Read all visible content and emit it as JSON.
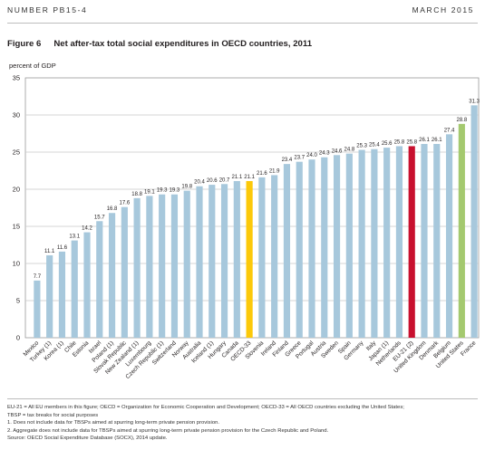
{
  "header": {
    "left": "NUMBER PB15-4",
    "right": "MARCH 2015"
  },
  "figure": {
    "label": "Figure 6",
    "title": "Net after-tax total social expenditures in OECD countries, 2011"
  },
  "colors": {
    "default": "#a7c8dc",
    "oecd33": "#fcc90a",
    "eu21": "#c8102e",
    "us": "#a4c96f",
    "grid": "#c9c9c9"
  },
  "chart_data": {
    "type": "bar",
    "ylabel": "percent of GDP",
    "ylim": [
      0,
      35
    ],
    "yticks": [
      0,
      5,
      10,
      15,
      20,
      25,
      30,
      35
    ],
    "grid": true,
    "categories": [
      "Mexico",
      "Turkey (1)",
      "Korea (1)",
      "Chile",
      "Estonia",
      "Israel",
      "Poland (1)",
      "Slovak Republic",
      "New Zealand (1)",
      "Luxembourg",
      "Czech Republic (1)",
      "Switzerland",
      "Norway",
      "Australia",
      "Iceland (1)",
      "Hungary",
      "Canada",
      "OECD-33",
      "Slovenia",
      "Ireland",
      "Finland",
      "Greece",
      "Portugal",
      "Austria",
      "Sweden",
      "Spain",
      "Germany",
      "Italy",
      "Japan (1)",
      "Netherlands",
      "EU-21 (2)",
      "United Kingdom",
      "Denmark",
      "Belgium",
      "United States",
      "France"
    ],
    "values": [
      7.7,
      11.1,
      11.6,
      13.1,
      14.2,
      15.7,
      16.8,
      17.6,
      18.8,
      19.1,
      19.3,
      19.3,
      19.8,
      20.4,
      20.6,
      20.7,
      21.1,
      21.1,
      21.6,
      21.9,
      23.4,
      23.7,
      24.0,
      24.3,
      24.6,
      24.8,
      25.3,
      25.4,
      25.6,
      25.8,
      25.8,
      26.1,
      26.1,
      27.4,
      28.8,
      31.3
    ],
    "value_labels": [
      "7.7",
      "11.1",
      "11.6",
      "13.1",
      "14.2",
      "15.7",
      "16.8",
      "17.6",
      "18.8",
      "19.1",
      "19.3",
      "19.3",
      "19.8",
      "20.4",
      "20.6",
      "20.7",
      "21.1",
      "21.1",
      "21.6",
      "21.9",
      "23.4",
      "23.7",
      "24.0",
      "24.3",
      "24.6",
      "24.8",
      "25.3",
      "25.4",
      "25.6",
      "25.8",
      "25.8",
      "26.1",
      "26.1",
      "27.4",
      "28.8",
      "31.3"
    ],
    "highlight": {
      "OECD-33": "oecd33",
      "EU-21 (2)": "eu21",
      "United States": "us"
    }
  },
  "notes": [
    "EU-21 = All EU members in this figure; OECD = Organization for Economic Cooperation and Development; OECD-33 = All OECD countries excluding the United States;",
    "TBSP = tax breaks for social purposes",
    "1. Does not include data for TBSPs aimed at spurring long-term private pension provision.",
    "2. Aggregate does not include data for TBSPs aimed at spurring long-term private pension provision for the Czech Republic and Poland.",
    "Source: OECD Social Expenditure Database (SOCX), 2014 update."
  ]
}
